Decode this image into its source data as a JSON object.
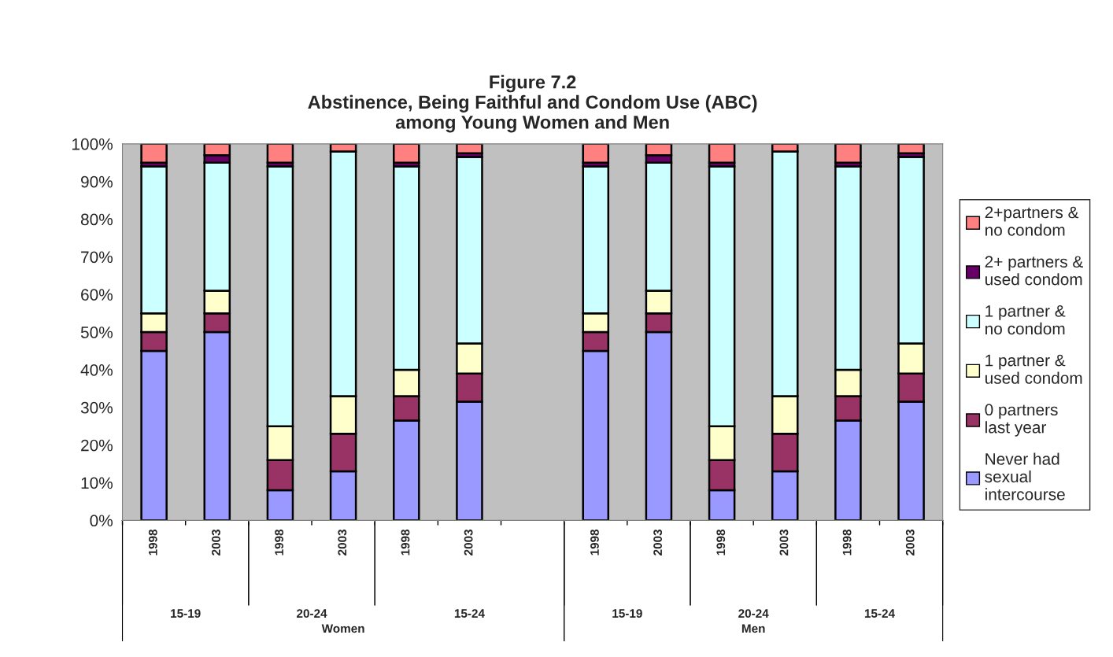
{
  "chart_data": {
    "type": "bar",
    "stacked": true,
    "title": "Figure 7.2\nAbstinence, Being Faithful and Condom Use (ABC)\namong Young Women and Men",
    "categories": [
      "1998",
      "2003",
      "1998",
      "2003",
      "1998",
      "2003",
      null,
      "1998",
      "2003",
      "1998",
      "2003",
      "1998",
      "2003"
    ],
    "series": [
      {
        "name": "Never had sexual intercourse",
        "color": "#9999ff",
        "values": [
          45,
          50,
          8,
          13,
          26.5,
          31.5,
          null,
          45,
          50,
          8,
          13,
          26.5,
          31.5
        ]
      },
      {
        "name": "0 partners last year",
        "color": "#993366",
        "values": [
          5,
          5,
          8,
          10,
          6.5,
          7.5,
          null,
          5,
          5,
          8,
          10,
          6.5,
          7.5
        ]
      },
      {
        "name": "1 partner & used condom",
        "color": "#ffffcc",
        "values": [
          5,
          6,
          9,
          10,
          7,
          8,
          null,
          5,
          6,
          9,
          10,
          7,
          8
        ]
      },
      {
        "name": "1 partner & no condom",
        "color": "#ccffff",
        "values": [
          39,
          34,
          69,
          65,
          54,
          49.5,
          null,
          39,
          34,
          69,
          65,
          54,
          49.5
        ]
      },
      {
        "name": "2+ partners & used condom",
        "color": "#660066",
        "values": [
          1,
          2,
          1,
          0,
          1,
          1,
          null,
          1,
          2,
          1,
          0,
          1,
          1
        ]
      },
      {
        "name": "2+partners & no condom",
        "color": "#ff8080",
        "values": [
          5,
          3,
          5,
          2,
          5,
          2.5,
          null,
          5,
          3,
          5,
          2,
          5,
          2.5
        ]
      }
    ],
    "annotations": [
      "15-19",
      "20-24",
      "15-24",
      "15-19",
      "20-24",
      "15-24",
      "Women",
      "Men"
    ],
    "ylim": [
      0,
      100
    ],
    "yticks": [
      {
        "value": 0,
        "label": "0%"
      },
      {
        "value": 10,
        "label": "10%"
      },
      {
        "value": 20,
        "label": "20%"
      },
      {
        "value": 30,
        "label": "30%"
      },
      {
        "value": 40,
        "label": "40%"
      },
      {
        "value": 50,
        "label": "50%"
      },
      {
        "value": 60,
        "label": "60%"
      },
      {
        "value": 70,
        "label": "70%"
      },
      {
        "value": 80,
        "label": "80%"
      },
      {
        "value": 90,
        "label": "90%"
      },
      {
        "value": 100,
        "label": "100%"
      }
    ],
    "grid": false,
    "legend": "right"
  }
}
